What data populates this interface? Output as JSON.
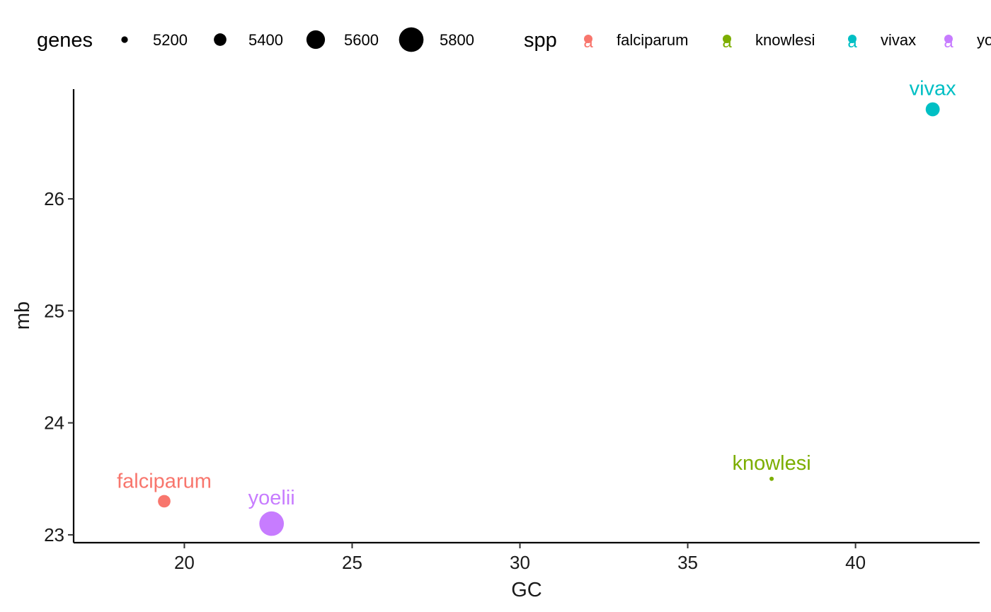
{
  "chart_data": {
    "type": "scatter",
    "title": "",
    "xlabel": "GC",
    "ylabel": "mb",
    "xlim": [
      16.7,
      43.7
    ],
    "ylim": [
      22.93,
      26.98
    ],
    "x_ticks": [
      20,
      25,
      30,
      35,
      40
    ],
    "y_ticks": [
      23,
      24,
      25,
      26
    ],
    "grid": false,
    "legend_position": "top",
    "size_legend": {
      "title": "genes",
      "entries": [
        {
          "label": "5200",
          "value": 5200
        },
        {
          "label": "5400",
          "value": 5400
        },
        {
          "label": "5600",
          "value": 5600
        },
        {
          "label": "5800",
          "value": 5800
        }
      ]
    },
    "color_legend": {
      "title": "spp",
      "key_glyph": "a",
      "entries": [
        {
          "label": "falciparum",
          "color": "#F8766D"
        },
        {
          "label": "knowlesi",
          "color": "#7CAE00"
        },
        {
          "label": "vivax",
          "color": "#00BFC4"
        },
        {
          "label": "yoelii",
          "color": "#C77CFF"
        }
      ]
    },
    "points": [
      {
        "label": "falciparum",
        "x": 19.4,
        "y": 23.3,
        "genes": 5400,
        "color": "#F8766D"
      },
      {
        "label": "yoelii",
        "x": 22.6,
        "y": 23.1,
        "genes": 5800,
        "color": "#C77CFF"
      },
      {
        "label": "knowlesi",
        "x": 37.5,
        "y": 23.5,
        "genes": 5100,
        "color": "#7CAE00"
      },
      {
        "label": "vivax",
        "x": 42.3,
        "y": 26.8,
        "genes": 5450,
        "color": "#00BFC4"
      }
    ]
  }
}
